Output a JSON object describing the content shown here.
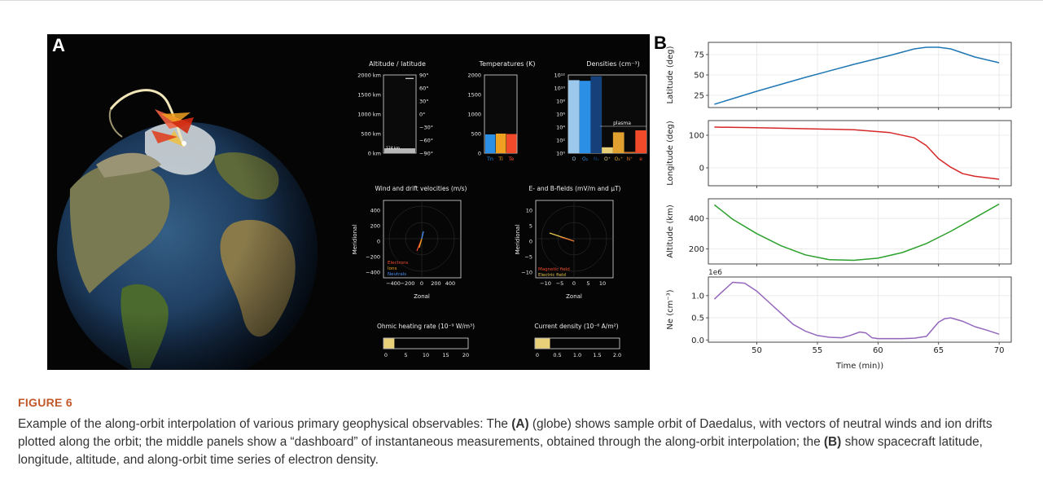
{
  "figure": {
    "label": "FIGURE 6",
    "caption": {
      "t1": "Example of the along-orbit interpolation of various primary geophysical observables: The ",
      "a_ref": "(A)",
      "t2": " (globe) shows sample orbit of Daedalus, with vectors of neutral winds and ion drifts plotted along the orbit; the middle panels show a “dashboard” of instantaneous measurements, obtained through the along-orbit interpolation; the ",
      "b_ref": "(B)",
      "t3": " show spacecraft latitude, longitude, altitude, and along-orbit time series of electron density."
    }
  },
  "panel_a": {
    "label": "A",
    "dashboard": {
      "altitude": {
        "title": "Altitude / latitude",
        "left_ticks": [
          "2000 km",
          "1500 km",
          "1000 km",
          "500 km",
          "0 km"
        ],
        "right_ticks": [
          "90°",
          "60°",
          "30°",
          "0°",
          "−30°",
          "−60°",
          "−90°"
        ],
        "bar_label": "124 km",
        "altitude_km": 124,
        "latitude_deg": 82
      },
      "temperatures": {
        "title": "Temperatures (K)",
        "ticks": [
          "2000",
          "1500",
          "1000",
          "500",
          "0"
        ],
        "xlabels": [
          "Tn",
          "Ti",
          "Te"
        ],
        "values": [
          480,
          500,
          490
        ],
        "colors": [
          "#2b8fe6",
          "#f0a020",
          "#f04a2a"
        ]
      },
      "densities": {
        "title": "Densities (cm⁻³)",
        "ticks": [
          "10¹²",
          "10¹⁰",
          "10⁸",
          "10⁶",
          "10⁴",
          "10²",
          "10⁰"
        ],
        "xlabels": [
          "O",
          "O₂",
          "N₂",
          "O⁺",
          "O₂⁺",
          "N⁺",
          "e"
        ],
        "plasma_label": "plasma",
        "log_values": [
          11.2,
          11.1,
          11.8,
          0.9,
          3.2,
          0.2,
          3.5
        ],
        "colors": [
          "#9cc8ec",
          "#2b8fe6",
          "#15407a",
          "#e8d078",
          "#e0a030",
          "#d07020",
          "#f04a2a"
        ]
      },
      "wind": {
        "title": "Wind and drift velocities (m/s)",
        "xlabel": "Zonal",
        "ylabel": "Meridional",
        "ticks": [
          "400",
          "200",
          "0",
          "−200",
          "−400"
        ],
        "xticks": [
          "−400",
          "−200",
          "0",
          "200",
          "400"
        ],
        "legend": [
          "Electrons",
          "Ions",
          "Neutrals"
        ],
        "legend_colors": [
          "#f04a2a",
          "#f0a020",
          "#4a8cf0"
        ]
      },
      "fields": {
        "title": "E- and B-fields (mV/m and µT)",
        "xlabel": "Zonal",
        "ylabel": "Meridional",
        "ticks": [
          "10",
          "5",
          "0",
          "−5",
          "−10"
        ],
        "xticks": [
          "−10",
          "−5",
          "0",
          "5",
          "10"
        ],
        "legend": [
          "Magnetic field",
          "Electric field"
        ],
        "legend_colors": [
          "#f04a2a",
          "#e6c84a"
        ]
      },
      "ohmic": {
        "title": "Ohmic heating rate (10⁻⁹ W/m³)",
        "ticks": [
          "0",
          "5",
          "10",
          "15",
          "20"
        ],
        "value": 2.5,
        "max": 20
      },
      "current": {
        "title": "Current density (10⁻⁶ A/m²)",
        "ticks": [
          "0",
          "0.5",
          "1.0",
          "1.5",
          "2.0"
        ],
        "value": 0.35,
        "max": 2.0
      }
    }
  },
  "panel_b": {
    "label": "B",
    "xlabel": "Time (min))",
    "xticks": [
      "50",
      "55",
      "60",
      "65",
      "70"
    ]
  },
  "chart_data": [
    {
      "type": "line",
      "ylabel": "Latitude (deg)",
      "xlim": [
        46,
        71
      ],
      "ylim": [
        10,
        90
      ],
      "yticks": [
        25,
        50,
        75
      ],
      "color": "#1f77b4",
      "x": [
        46.5,
        50,
        54,
        58,
        61,
        63,
        64,
        65,
        66,
        67,
        68,
        70
      ],
      "y": [
        14,
        30,
        47,
        63,
        74,
        82,
        84,
        84,
        82,
        77,
        72,
        65
      ]
    },
    {
      "type": "line",
      "ylabel": "Longitude (deg)",
      "xlim": [
        46,
        71
      ],
      "ylim": [
        -55,
        145
      ],
      "yticks": [
        0,
        100
      ],
      "color": "#d62728",
      "x": [
        46.5,
        50,
        54,
        58,
        61,
        63,
        64,
        65,
        66,
        67,
        68,
        70
      ],
      "y": [
        125,
        123,
        120,
        117,
        108,
        92,
        68,
        28,
        2,
        -18,
        -26,
        -35
      ]
    },
    {
      "type": "line",
      "ylabel": "Altitude (km)",
      "xlim": [
        46,
        71
      ],
      "ylim": [
        100,
        530
      ],
      "yticks": [
        200,
        400
      ],
      "color": "#2ca02c",
      "x": [
        46.5,
        48,
        50,
        52,
        54,
        56,
        58,
        60,
        62,
        64,
        66,
        68,
        70
      ],
      "y": [
        490,
        395,
        300,
        220,
        160,
        128,
        124,
        138,
        175,
        235,
        315,
        405,
        495
      ]
    },
    {
      "type": "line",
      "ylabel": "Ne (cm⁻³)",
      "multiplier": "1e6",
      "xlim": [
        46,
        71
      ],
      "ylim": [
        -0.05,
        1.42
      ],
      "yticks": [
        0.0,
        0.5,
        1.0
      ],
      "color": "#9467bd",
      "x": [
        46.5,
        47,
        48,
        49,
        50,
        51,
        52,
        53,
        54,
        55,
        56,
        57,
        57.7,
        58.5,
        59,
        59.5,
        60,
        61,
        62,
        63,
        64,
        65,
        65.5,
        66,
        67,
        68,
        69,
        70
      ],
      "y": [
        0.92,
        1.05,
        1.3,
        1.28,
        1.1,
        0.85,
        0.6,
        0.35,
        0.2,
        0.1,
        0.06,
        0.05,
        0.1,
        0.18,
        0.16,
        0.05,
        0.03,
        0.03,
        0.03,
        0.04,
        0.08,
        0.4,
        0.48,
        0.5,
        0.42,
        0.3,
        0.22,
        0.13
      ]
    }
  ]
}
